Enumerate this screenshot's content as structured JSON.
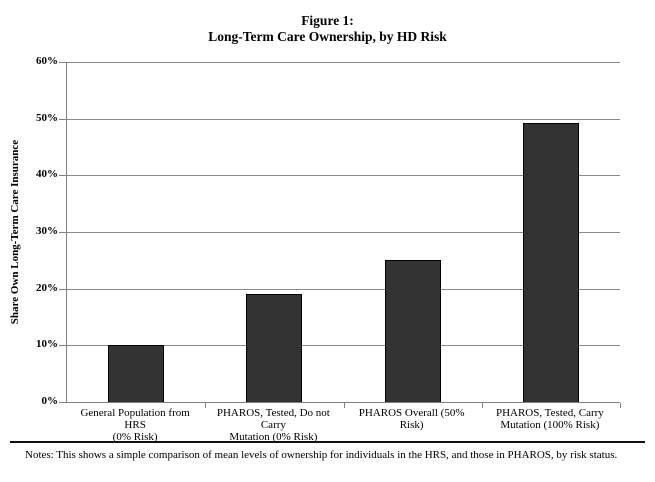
{
  "title": {
    "line1": "Figure 1:",
    "line2": "Long-Term Care Ownership, by HD Risk"
  },
  "chart_data": {
    "type": "bar",
    "title": "Figure 1: Long-Term Care Ownership, by HD Risk",
    "categories": [
      "General Population from HRS (0% Risk)",
      "PHAROS, Tested, Do not Carry Mutation (0% Risk)",
      "PHAROS Overall (50% Risk)",
      "PHAROS, Tested, Carry Mutation (100% Risk)"
    ],
    "category_lines": [
      [
        "General Population from HRS",
        "(0% Risk)"
      ],
      [
        "PHAROS, Tested, Do not Carry",
        "Mutation (0% Risk)"
      ],
      [
        "PHAROS Overall (50% Risk)"
      ],
      [
        "PHAROS, Tested, Carry",
        "Mutation (100% Risk)"
      ]
    ],
    "values": [
      10,
      19,
      25,
      49.3
    ],
    "xlabel": "",
    "ylabel": "Share Own Long-Term Care Insurance",
    "ylim": [
      0,
      60
    ],
    "yticks": [
      "0%",
      "10%",
      "20%",
      "30%",
      "40%",
      "50%",
      "60%"
    ],
    "grid": "horizontal gridlines at each 10%",
    "legend": "none",
    "bar_color": "#333333",
    "gridline_color": "#8a8a8a",
    "axis_color": "#808080"
  },
  "notes": "Notes: This shows a simple comparison of mean levels of ownership for individuals in the HRS, and those in PHAROS, by risk status."
}
